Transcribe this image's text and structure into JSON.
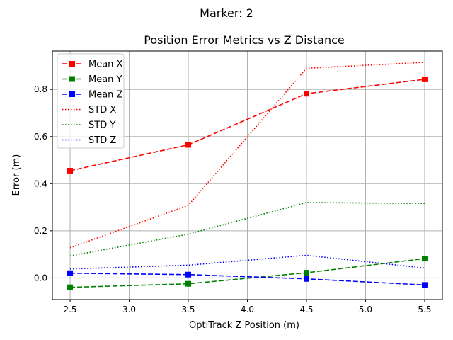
{
  "chart_data": {
    "type": "line",
    "suptitle": "Marker: 2",
    "title": "Position Error Metrics vs Z Distance",
    "xlabel": "OptiTrack Z Position (m)",
    "ylabel": "Error (m)",
    "x": [
      2.5,
      3.5,
      4.5,
      5.5
    ],
    "xlim": [
      2.35,
      5.65
    ],
    "ylim": [
      -0.092,
      0.963
    ],
    "xticks": [
      2.5,
      3.0,
      3.5,
      4.0,
      4.5,
      5.0,
      5.5
    ],
    "xtick_labels": [
      "2.5",
      "3.0",
      "3.5",
      "4.0",
      "4.5",
      "5.0",
      "5.5"
    ],
    "yticks": [
      0.0,
      0.2,
      0.4,
      0.6,
      0.8
    ],
    "ytick_labels": [
      "0.0",
      "0.2",
      "0.4",
      "0.6",
      "0.8"
    ],
    "grid": true,
    "legend": "top-left",
    "series": [
      {
        "name": "Mean X",
        "values": [
          0.455,
          0.565,
          0.782,
          0.843
        ],
        "color": "#ff0000",
        "style": "dashed",
        "marker": "square"
      },
      {
        "name": "Mean Y",
        "values": [
          -0.04,
          -0.025,
          0.022,
          0.082
        ],
        "color": "#008000",
        "style": "dashed",
        "marker": "square"
      },
      {
        "name": "Mean Z",
        "values": [
          0.02,
          0.014,
          -0.004,
          -0.03
        ],
        "color": "#0000ff",
        "style": "dashed",
        "marker": "square"
      },
      {
        "name": "STD X",
        "values": [
          0.128,
          0.308,
          0.89,
          0.915
        ],
        "color": "#ff0000",
        "style": "dotted",
        "marker": "none"
      },
      {
        "name": "STD Y",
        "values": [
          0.093,
          0.186,
          0.32,
          0.316
        ],
        "color": "#008000",
        "style": "dotted",
        "marker": "none"
      },
      {
        "name": "STD Z",
        "values": [
          0.038,
          0.054,
          0.096,
          0.042
        ],
        "color": "#0000ff",
        "style": "dotted",
        "marker": "none"
      }
    ]
  }
}
